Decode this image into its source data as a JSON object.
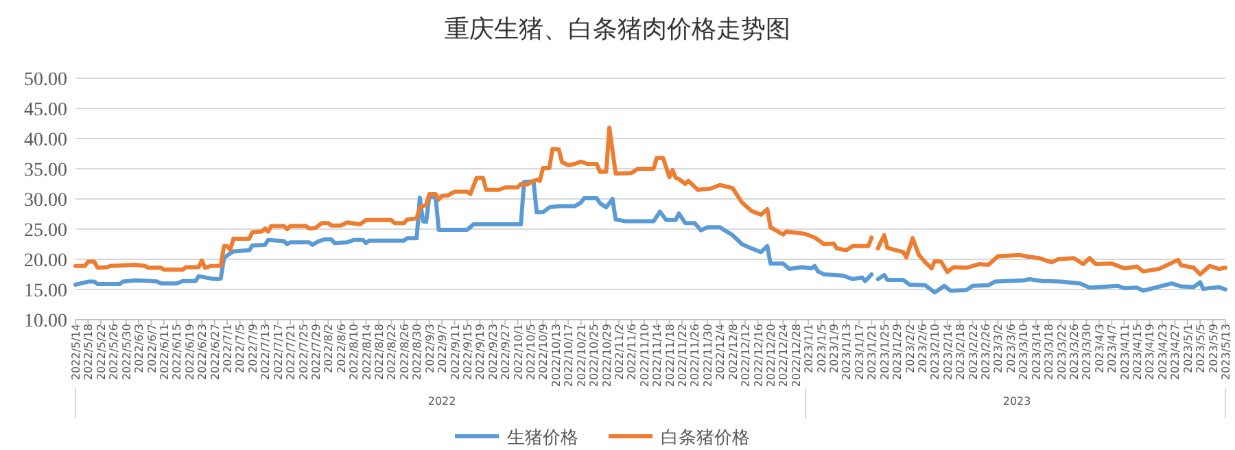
{
  "chart_data": {
    "type": "line",
    "title": "重庆生猪、白条猪肉价格走势图",
    "xlim": [
      "2022-05-14",
      "2023-05-13"
    ],
    "xticks": [
      {
        "value": "2022-05-14",
        "label": "2022/5/14"
      },
      {
        "value": "2022-05-18",
        "label": "2022/5/18"
      },
      {
        "value": "2022-05-22",
        "label": "2022/5/22"
      },
      {
        "value": "2022-05-26",
        "label": "2022/5/26"
      },
      {
        "value": "2022-05-30",
        "label": "2022/5/30"
      },
      {
        "value": "2022-06-03",
        "label": "2022/6/3"
      },
      {
        "value": "2022-06-07",
        "label": "2022/6/7"
      },
      {
        "value": "2022-06-11",
        "label": "2022/6/11"
      },
      {
        "value": "2022-06-15",
        "label": "2022/6/15"
      },
      {
        "value": "2022-06-19",
        "label": "2022/6/19"
      },
      {
        "value": "2022-06-23",
        "label": "2022/6/23"
      },
      {
        "value": "2022-06-27",
        "label": "2022/6/27"
      },
      {
        "value": "2022-07-01",
        "label": "2022/7/1"
      },
      {
        "value": "2022-07-05",
        "label": "2022/7/5"
      },
      {
        "value": "2022-07-09",
        "label": "2022/7/9"
      },
      {
        "value": "2022-07-13",
        "label": "2022/7/13"
      },
      {
        "value": "2022-07-17",
        "label": "2022/7/17"
      },
      {
        "value": "2022-07-21",
        "label": "2022/7/21"
      },
      {
        "value": "2022-07-25",
        "label": "2022/7/25"
      },
      {
        "value": "2022-07-29",
        "label": "2022/7/29"
      },
      {
        "value": "2022-08-02",
        "label": "2022/8/2"
      },
      {
        "value": "2022-08-06",
        "label": "2022/8/6"
      },
      {
        "value": "2022-08-10",
        "label": "2022/8/10"
      },
      {
        "value": "2022-08-14",
        "label": "2022/8/14"
      },
      {
        "value": "2022-08-18",
        "label": "2022/8/18"
      },
      {
        "value": "2022-08-22",
        "label": "2022/8/22"
      },
      {
        "value": "2022-08-26",
        "label": "2022/8/26"
      },
      {
        "value": "2022-08-30",
        "label": "2022/8/30"
      },
      {
        "value": "2022-09-03",
        "label": "2022/9/3"
      },
      {
        "value": "2022-09-07",
        "label": "2022/9/7"
      },
      {
        "value": "2022-09-11",
        "label": "2022/9/11"
      },
      {
        "value": "2022-09-15",
        "label": "2022/9/15"
      },
      {
        "value": "2022-09-19",
        "label": "2022/9/19"
      },
      {
        "value": "2022-09-23",
        "label": "2022/9/23"
      },
      {
        "value": "2022-09-27",
        "label": "2022/9/27"
      },
      {
        "value": "2022-10-01",
        "label": "2022/10/1"
      },
      {
        "value": "2022-10-05",
        "label": "2022/10/5"
      },
      {
        "value": "2022-10-09",
        "label": "2022/10/9"
      },
      {
        "value": "2022-10-13",
        "label": "2022/10/13"
      },
      {
        "value": "2022-10-17",
        "label": "2022/10/17"
      },
      {
        "value": "2022-10-21",
        "label": "2022/10/21"
      },
      {
        "value": "2022-10-25",
        "label": "2022/10/25"
      },
      {
        "value": "2022-10-29",
        "label": "2022/10/29"
      },
      {
        "value": "2022-11-02",
        "label": "2022/11/2"
      },
      {
        "value": "2022-11-06",
        "label": "2022/11/6"
      },
      {
        "value": "2022-11-10",
        "label": "2022/11/10"
      },
      {
        "value": "2022-11-14",
        "label": "2022/11/14"
      },
      {
        "value": "2022-11-18",
        "label": "2022/11/18"
      },
      {
        "value": "2022-11-22",
        "label": "2022/11/22"
      },
      {
        "value": "2022-11-26",
        "label": "2022/11/26"
      },
      {
        "value": "2022-11-30",
        "label": "2022/11/30"
      },
      {
        "value": "2022-12-04",
        "label": "2022/12/4"
      },
      {
        "value": "2022-12-08",
        "label": "2022/12/8"
      },
      {
        "value": "2022-12-12",
        "label": "2022/12/12"
      },
      {
        "value": "2022-12-16",
        "label": "2022/12/16"
      },
      {
        "value": "2022-12-20",
        "label": "2022/12/20"
      },
      {
        "value": "2022-12-24",
        "label": "2022/12/24"
      },
      {
        "value": "2022-12-28",
        "label": "2022/12/28"
      },
      {
        "value": "2023-01-01",
        "label": "2023/1/1"
      },
      {
        "value": "2023-01-05",
        "label": "2023/1/5"
      },
      {
        "value": "2023-01-09",
        "label": "2023/1/9"
      },
      {
        "value": "2023-01-13",
        "label": "2023/1/13"
      },
      {
        "value": "2023-01-17",
        "label": "2023/1/17"
      },
      {
        "value": "2023-01-21",
        "label": "2023/1/21"
      },
      {
        "value": "2023-01-25",
        "label": "2023/1/25"
      },
      {
        "value": "2023-01-29",
        "label": "2023/1/29"
      },
      {
        "value": "2023-02-02",
        "label": "2023/2/2"
      },
      {
        "value": "2023-02-06",
        "label": "2023/2/6"
      },
      {
        "value": "2023-02-10",
        "label": "2023/2/10"
      },
      {
        "value": "2023-02-14",
        "label": "2023/2/14"
      },
      {
        "value": "2023-02-18",
        "label": "2023/2/18"
      },
      {
        "value": "2023-02-22",
        "label": "2023/2/22"
      },
      {
        "value": "2023-02-26",
        "label": "2023/2/26"
      },
      {
        "value": "2023-03-02",
        "label": "2023/3/2"
      },
      {
        "value": "2023-03-06",
        "label": "2023/3/6"
      },
      {
        "value": "2023-03-10",
        "label": "2023/3/10"
      },
      {
        "value": "2023-03-14",
        "label": "2023/3/14"
      },
      {
        "value": "2023-03-18",
        "label": "2023/3/18"
      },
      {
        "value": "2023-03-22",
        "label": "2023/3/22"
      },
      {
        "value": "2023-03-26",
        "label": "2023/3/26"
      },
      {
        "value": "2023-03-30",
        "label": "2023/3/30"
      },
      {
        "value": "2023-04-03",
        "label": "2023/4/3"
      },
      {
        "value": "2023-04-07",
        "label": "2023/4/7"
      },
      {
        "value": "2023-04-11",
        "label": "2023/4/11"
      },
      {
        "value": "2023-04-15",
        "label": "2023/4/15"
      },
      {
        "value": "2023-04-19",
        "label": "2023/4/19"
      },
      {
        "value": "2023-04-23",
        "label": "2023/4/23"
      },
      {
        "value": "2023-04-27",
        "label": "2023/4/27"
      },
      {
        "value": "2023-05-01",
        "label": "2023/5/1"
      },
      {
        "value": "2023-05-05",
        "label": "2023/5/5"
      },
      {
        "value": "2023-05-09",
        "label": "2023/5/9"
      },
      {
        "value": "2023-05-13",
        "label": "2023/5/13"
      }
    ],
    "ylim": [
      10,
      50
    ],
    "yticks": [
      {
        "value": 10,
        "label": "10.00"
      },
      {
        "value": 15,
        "label": "15.00"
      },
      {
        "value": 20,
        "label": "20.00"
      },
      {
        "value": 25,
        "label": "25.00"
      },
      {
        "value": 30,
        "label": "30.00"
      },
      {
        "value": 35,
        "label": "35.00"
      },
      {
        "value": 40,
        "label": "40.00"
      },
      {
        "value": 45,
        "label": "45.00"
      },
      {
        "value": 50,
        "label": "50.00"
      }
    ],
    "grid": "y",
    "legend": "bottom",
    "marker": "none",
    "line_style": "solid",
    "annotations": [
      "2022",
      "2023"
    ],
    "series": [
      {
        "name": "生猪价格",
        "color": "#5b9bd5",
        "x": [
          "2022-05-14",
          "2022-05-18",
          "2022-05-20",
          "2022-05-21",
          "2022-05-28",
          "2022-05-29",
          "2022-06-02",
          "2022-06-07",
          "2022-06-09",
          "2022-06-10",
          "2022-06-15",
          "2022-06-17",
          "2022-06-21",
          "2022-06-22",
          "2022-06-26",
          "2022-06-28",
          "2022-06-29",
          "2022-06-30",
          "2022-07-02",
          "2022-07-03",
          "2022-07-08",
          "2022-07-09",
          "2022-07-13",
          "2022-07-14",
          "2022-07-19",
          "2022-07-20",
          "2022-07-21",
          "2022-07-27",
          "2022-07-28",
          "2022-07-30",
          "2022-08-01",
          "2022-08-03",
          "2022-08-04",
          "2022-08-08",
          "2022-08-10",
          "2022-08-13",
          "2022-08-14",
          "2022-08-15",
          "2022-08-26",
          "2022-08-27",
          "2022-08-30",
          "2022-08-31",
          "2022-09-01",
          "2022-09-02",
          "2022-09-03",
          "2022-09-05",
          "2022-09-06",
          "2022-09-15",
          "2022-09-17",
          "2022-10-02",
          "2022-10-03",
          "2022-10-06",
          "2022-10-07",
          "2022-10-09",
          "2022-10-11",
          "2022-10-14",
          "2022-10-19",
          "2022-10-21",
          "2022-10-22",
          "2022-10-26",
          "2022-10-27",
          "2022-10-29",
          "2022-10-31",
          "2022-11-01",
          "2022-11-04",
          "2022-11-13",
          "2022-11-15",
          "2022-11-17",
          "2022-11-20",
          "2022-11-21",
          "2022-11-23",
          "2022-11-26",
          "2022-11-28",
          "2022-11-30",
          "2022-12-04",
          "2022-12-08",
          "2022-12-11",
          "2022-12-14",
          "2022-12-17",
          "2022-12-19",
          "2022-12-20",
          "2022-12-24",
          "2022-12-26",
          "2022-12-30",
          "2023-01-02",
          "2023-01-03",
          "2023-01-04",
          "2023-01-06",
          "2023-01-12",
          "2023-01-15",
          "2023-01-18",
          "2023-01-19",
          "2023-01-21",
          "2023-01-22",
          "2023-01-23",
          "2023-01-25",
          "2023-01-26",
          "2023-01-31",
          "2023-02-02",
          "2023-02-07",
          "2023-02-10",
          "2023-02-13",
          "2023-02-15",
          "2023-02-20",
          "2023-02-22",
          "2023-02-27",
          "2023-03-01",
          "2023-03-10",
          "2023-03-12",
          "2023-03-16",
          "2023-03-22",
          "2023-03-28",
          "2023-03-31",
          "2023-04-09",
          "2023-04-11",
          "2023-04-15",
          "2023-04-17",
          "2023-04-20",
          "2023-04-26",
          "2023-04-29",
          "2023-05-03",
          "2023-05-05",
          "2023-05-06",
          "2023-05-11",
          "2023-05-13"
        ],
        "values": [
          15.8,
          16.3,
          16.3,
          15.9,
          15.9,
          16.3,
          16.5,
          16.4,
          16.3,
          16.0,
          16.0,
          16.4,
          16.4,
          17.2,
          16.8,
          16.7,
          16.8,
          20.2,
          21.0,
          21.3,
          21.5,
          22.3,
          22.4,
          23.2,
          23.0,
          22.5,
          22.8,
          22.8,
          22.4,
          23.0,
          23.3,
          23.3,
          22.7,
          22.8,
          23.2,
          23.2,
          22.7,
          23.1,
          23.1,
          23.5,
          23.5,
          30.2,
          26.3,
          26.2,
          30.5,
          30.3,
          24.9,
          24.9,
          25.8,
          25.8,
          32.8,
          32.9,
          27.8,
          27.8,
          28.6,
          28.8,
          28.8,
          29.4,
          30.1,
          30.1,
          29.3,
          28.6,
          30.0,
          26.6,
          26.3,
          26.3,
          27.9,
          26.5,
          26.5,
          27.6,
          26.0,
          26.0,
          24.8,
          25.3,
          25.3,
          24.0,
          22.5,
          21.8,
          21.2,
          22.2,
          19.3,
          19.3,
          18.4,
          18.7,
          18.5,
          18.9,
          18.0,
          17.5,
          17.3,
          16.7,
          17.0,
          16.4,
          17.5,
          null,
          16.7,
          17.4,
          16.6,
          16.6,
          15.8,
          15.7,
          14.5,
          15.6,
          14.8,
          14.9,
          15.6,
          15.7,
          16.3,
          16.5,
          16.7,
          16.4,
          16.3,
          16.0,
          15.3,
          15.6,
          15.2,
          15.3,
          14.8,
          15.2,
          16.0,
          15.5,
          15.4,
          16.2,
          15.1,
          15.4,
          15.0
        ]
      },
      {
        "name": "白条猪价格",
        "color": "#ed7d31",
        "x": [
          "2022-05-14",
          "2022-05-17",
          "2022-05-18",
          "2022-05-20",
          "2022-05-21",
          "2022-05-24",
          "2022-05-25",
          "2022-06-02",
          "2022-06-05",
          "2022-06-06",
          "2022-06-10",
          "2022-06-11",
          "2022-06-17",
          "2022-06-18",
          "2022-06-22",
          "2022-06-23",
          "2022-06-24",
          "2022-06-26",
          "2022-06-29",
          "2022-06-30",
          "2022-07-01",
          "2022-07-02",
          "2022-07-03",
          "2022-07-08",
          "2022-07-09",
          "2022-07-12",
          "2022-07-13",
          "2022-07-14",
          "2022-07-15",
          "2022-07-19",
          "2022-07-20",
          "2022-07-21",
          "2022-07-26",
          "2022-07-27",
          "2022-07-29",
          "2022-07-31",
          "2022-08-02",
          "2022-08-03",
          "2022-08-06",
          "2022-08-08",
          "2022-08-12",
          "2022-08-14",
          "2022-08-22",
          "2022-08-23",
          "2022-08-26",
          "2022-08-27",
          "2022-08-30",
          "2022-08-31",
          "2022-09-02",
          "2022-09-03",
          "2022-09-05",
          "2022-09-06",
          "2022-09-07",
          "2022-09-09",
          "2022-09-11",
          "2022-09-15",
          "2022-09-16",
          "2022-09-18",
          "2022-09-20",
          "2022-09-21",
          "2022-09-25",
          "2022-09-27",
          "2022-10-01",
          "2022-10-02",
          "2022-10-04",
          "2022-10-07",
          "2022-10-08",
          "2022-10-09",
          "2022-10-11",
          "2022-10-12",
          "2022-10-14",
          "2022-10-15",
          "2022-10-17",
          "2022-10-19",
          "2022-10-21",
          "2022-10-23",
          "2022-10-26",
          "2022-10-27",
          "2022-10-29",
          "2022-10-30",
          "2022-11-01",
          "2022-11-06",
          "2022-11-08",
          "2022-11-13",
          "2022-11-14",
          "2022-11-16",
          "2022-11-18",
          "2022-11-19",
          "2022-11-20",
          "2022-11-21",
          "2022-11-23",
          "2022-11-24",
          "2022-11-27",
          "2022-12-01",
          "2022-12-04",
          "2022-12-08",
          "2022-12-11",
          "2022-12-14",
          "2022-12-17",
          "2022-12-19",
          "2022-12-20",
          "2022-12-24",
          "2022-12-25",
          "2022-12-28",
          "2022-12-31",
          "2023-01-03",
          "2023-01-06",
          "2023-01-09",
          "2023-01-10",
          "2023-01-13",
          "2023-01-15",
          "2023-01-20",
          "2023-01-21",
          "2023-01-22",
          "2023-01-23",
          "2023-01-25",
          "2023-01-26",
          "2023-01-31",
          "2023-02-01",
          "2023-02-03",
          "2023-02-05",
          "2023-02-07",
          "2023-02-09",
          "2023-02-10",
          "2023-02-12",
          "2023-02-14",
          "2023-02-16",
          "2023-02-20",
          "2023-02-24",
          "2023-02-27",
          "2023-03-02",
          "2023-03-09",
          "2023-03-12",
          "2023-03-15",
          "2023-03-19",
          "2023-03-21",
          "2023-03-26",
          "2023-03-29",
          "2023-03-31",
          "2023-04-02",
          "2023-04-07",
          "2023-04-11",
          "2023-04-15",
          "2023-04-17",
          "2023-04-22",
          "2023-04-28",
          "2023-04-29",
          "2023-05-03",
          "2023-05-05",
          "2023-05-08",
          "2023-05-11",
          "2023-05-13"
        ],
        "values": [
          18.9,
          18.9,
          19.6,
          19.6,
          18.6,
          18.7,
          18.9,
          19.1,
          18.9,
          18.6,
          18.6,
          18.3,
          18.3,
          18.7,
          18.7,
          19.8,
          18.6,
          18.9,
          18.9,
          22.2,
          22.2,
          21.6,
          23.4,
          23.4,
          24.5,
          24.6,
          25.1,
          24.6,
          25.5,
          25.5,
          25.0,
          25.5,
          25.5,
          25.1,
          25.2,
          26.0,
          26.0,
          25.6,
          25.6,
          26.1,
          25.8,
          26.5,
          26.5,
          26.0,
          26.0,
          26.6,
          26.8,
          28.6,
          29.0,
          30.8,
          30.8,
          29.9,
          30.5,
          30.6,
          31.2,
          31.2,
          30.8,
          33.5,
          33.5,
          31.5,
          31.5,
          31.9,
          31.9,
          32.5,
          32.4,
          33.2,
          33.0,
          35.1,
          35.1,
          38.3,
          38.2,
          36.1,
          35.6,
          35.8,
          36.2,
          35.8,
          35.8,
          34.5,
          34.5,
          41.8,
          34.2,
          34.3,
          35.0,
          35.0,
          36.8,
          36.8,
          33.6,
          34.8,
          33.5,
          33.3,
          32.5,
          33.0,
          31.5,
          31.7,
          32.3,
          31.8,
          29.4,
          28.0,
          27.4,
          28.3,
          25.3,
          24.1,
          24.6,
          24.4,
          24.2,
          23.6,
          22.5,
          22.6,
          21.8,
          21.5,
          22.2,
          22.2,
          23.6,
          null,
          21.8,
          24.0,
          21.9,
          21.2,
          20.3,
          23.5,
          20.7,
          19.5,
          18.5,
          19.7,
          19.6,
          17.9,
          18.7,
          18.6,
          19.2,
          19.1,
          20.5,
          20.7,
          20.4,
          20.2,
          19.5,
          20.0,
          20.2,
          19.2,
          20.2,
          19.2,
          19.3,
          18.5,
          18.8,
          18.0,
          18.4,
          19.9,
          19.0,
          18.6,
          17.5,
          18.9,
          18.4,
          18.6
        ]
      }
    ]
  }
}
